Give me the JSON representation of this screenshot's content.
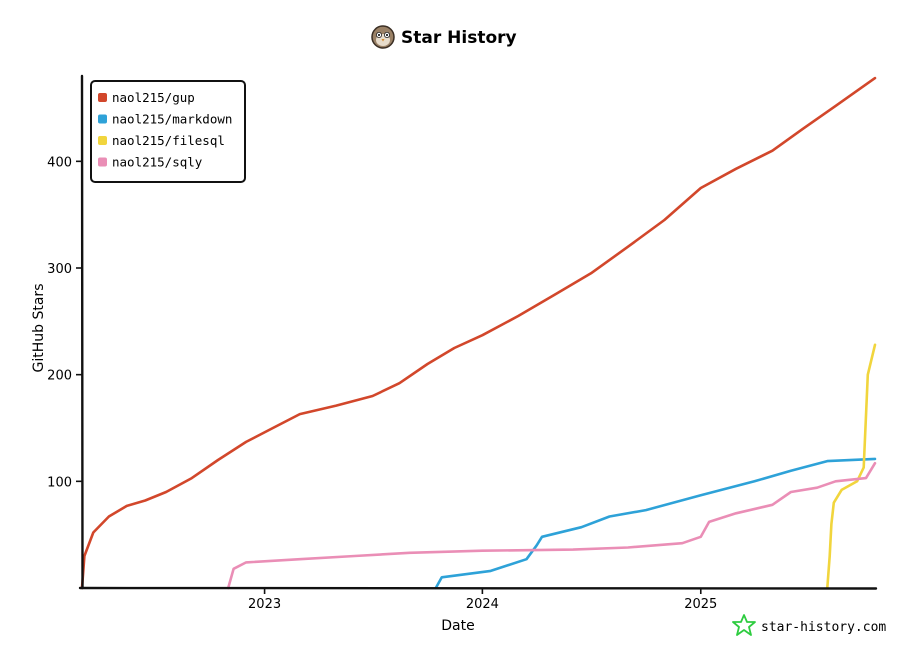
{
  "chart_data": {
    "type": "line",
    "title": "Star History",
    "xlabel": "Date",
    "ylabel": "GitHub Stars",
    "xlim": [
      "2022-03-01",
      "2025-10-20"
    ],
    "ylim": [
      0,
      480
    ],
    "x_ticks": [
      "2023",
      "2024",
      "2025"
    ],
    "y_ticks": [
      100,
      200,
      300,
      400
    ],
    "grid": false,
    "legend_position": "top-left",
    "series": [
      {
        "name": "naol215/gup",
        "color": "#d2472b",
        "points": [
          [
            "2022-03-01",
            0
          ],
          [
            "2022-03-05",
            30
          ],
          [
            "2022-03-20",
            52
          ],
          [
            "2022-04-15",
            67
          ],
          [
            "2022-05-15",
            77
          ],
          [
            "2022-06-15",
            82
          ],
          [
            "2022-07-20",
            90
          ],
          [
            "2022-09-01",
            103
          ],
          [
            "2022-10-15",
            120
          ],
          [
            "2022-12-01",
            137
          ],
          [
            "2023-01-15",
            150
          ],
          [
            "2023-03-01",
            163
          ],
          [
            "2023-05-01",
            171
          ],
          [
            "2023-07-01",
            180
          ],
          [
            "2023-08-15",
            192
          ],
          [
            "2023-10-01",
            210
          ],
          [
            "2023-11-15",
            225
          ],
          [
            "2024-01-01",
            237
          ],
          [
            "2024-03-01",
            255
          ],
          [
            "2024-05-01",
            275
          ],
          [
            "2024-07-01",
            295
          ],
          [
            "2024-09-01",
            320
          ],
          [
            "2024-11-01",
            345
          ],
          [
            "2025-01-01",
            375
          ],
          [
            "2025-03-01",
            393
          ],
          [
            "2025-05-01",
            410
          ],
          [
            "2025-06-20",
            430
          ],
          [
            "2025-08-15",
            452
          ],
          [
            "2025-10-20",
            478
          ]
        ]
      },
      {
        "name": "naol215/markdown",
        "color": "#2ea2d8",
        "points": [
          [
            "2023-10-15",
            0
          ],
          [
            "2023-10-25",
            10
          ],
          [
            "2024-01-15",
            16
          ],
          [
            "2024-03-15",
            27
          ],
          [
            "2024-04-01",
            40
          ],
          [
            "2024-04-10",
            48
          ],
          [
            "2024-06-15",
            57
          ],
          [
            "2024-08-01",
            67
          ],
          [
            "2024-10-01",
            73
          ],
          [
            "2025-01-01",
            87
          ],
          [
            "2025-04-01",
            100
          ],
          [
            "2025-06-01",
            110
          ],
          [
            "2025-08-01",
            119
          ],
          [
            "2025-10-20",
            121
          ]
        ]
      },
      {
        "name": "naol215/filesql",
        "color": "#f1d53d",
        "points": [
          [
            "2025-08-01",
            0
          ],
          [
            "2025-08-05",
            30
          ],
          [
            "2025-08-08",
            60
          ],
          [
            "2025-08-12",
            80
          ],
          [
            "2025-08-25",
            92
          ],
          [
            "2025-09-20",
            100
          ],
          [
            "2025-10-01",
            113
          ],
          [
            "2025-10-08",
            200
          ],
          [
            "2025-10-20",
            228
          ]
        ]
      },
      {
        "name": "naol215/sqly",
        "color": "#ea8eb6",
        "points": [
          [
            "2022-11-01",
            0
          ],
          [
            "2022-11-10",
            18
          ],
          [
            "2022-12-01",
            24
          ],
          [
            "2023-03-01",
            27
          ],
          [
            "2023-06-01",
            30
          ],
          [
            "2023-09-01",
            33
          ],
          [
            "2024-01-01",
            35
          ],
          [
            "2024-06-01",
            36
          ],
          [
            "2024-09-01",
            38
          ],
          [
            "2024-12-01",
            42
          ],
          [
            "2025-01-01",
            48
          ],
          [
            "2025-01-15",
            62
          ],
          [
            "2025-03-01",
            70
          ],
          [
            "2025-05-01",
            78
          ],
          [
            "2025-06-01",
            90
          ],
          [
            "2025-07-15",
            94
          ],
          [
            "2025-08-15",
            100
          ],
          [
            "2025-10-05",
            103
          ],
          [
            "2025-10-20",
            117
          ]
        ]
      }
    ]
  },
  "watermark": "star-history.com"
}
